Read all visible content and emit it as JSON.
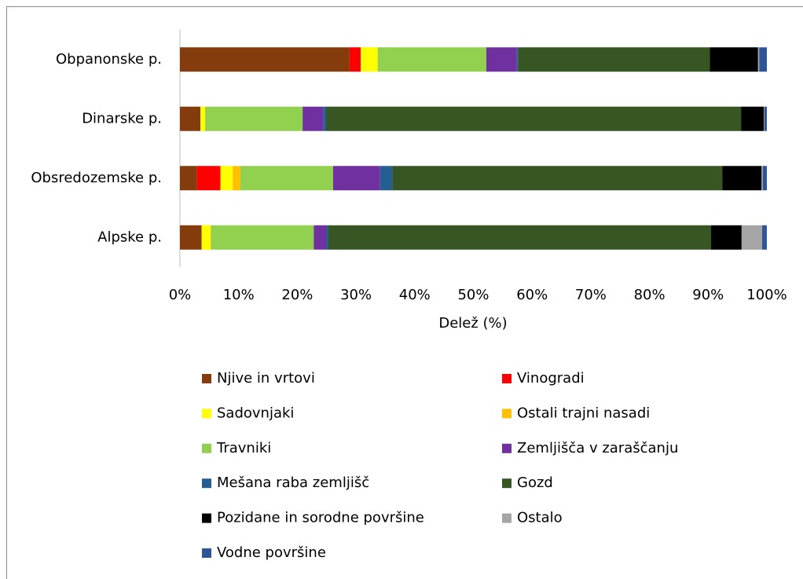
{
  "chart_data": {
    "type": "stacked_bar_horizontal",
    "categories": [
      "Obpanonske p.",
      "Dinarske p.",
      "Obsredozemske p.",
      "Alpske p."
    ],
    "series": [
      {
        "name": "Njive in vrtovi",
        "color": "#843c0c",
        "values": [
          28.9,
          3.5,
          2.9,
          3.7
        ]
      },
      {
        "name": "Vinogradi",
        "color": "#ff0000",
        "values": [
          1.9,
          0,
          4.0,
          0
        ]
      },
      {
        "name": "Sadovnjaki",
        "color": "#ffff00",
        "values": [
          2.9,
          0.8,
          2.1,
          1.5
        ]
      },
      {
        "name": "Ostali trajni nasadi",
        "color": "#ffc000",
        "values": [
          0,
          0,
          1.3,
          0.1
        ]
      },
      {
        "name": "Travniki",
        "color": "#92d050",
        "values": [
          18.5,
          16.6,
          15.8,
          17.5
        ]
      },
      {
        "name": "Zemljišča v zaraščanju",
        "color": "#7030a0",
        "values": [
          5.2,
          3.5,
          8.0,
          2.1
        ]
      },
      {
        "name": "Mešana raba zemljišč",
        "color": "#255e91",
        "values": [
          0.2,
          0.5,
          2.1,
          0.4
        ]
      },
      {
        "name": "Gozd",
        "color": "#375623",
        "values": [
          32.7,
          70.7,
          56.2,
          65.2
        ]
      },
      {
        "name": "Pozidane in sorodne površine",
        "color": "#000000",
        "values": [
          8.2,
          3.9,
          6.7,
          5.2
        ]
      },
      {
        "name": "Ostalo",
        "color": "#a5a5a5",
        "values": [
          0.2,
          0.1,
          0.2,
          3.5
        ]
      },
      {
        "name": "Vodne površine",
        "color": "#2f5597",
        "values": [
          1.3,
          0.4,
          0.7,
          0.8
        ]
      }
    ],
    "xlabel": "Delež (%)",
    "xlim": [
      0,
      100
    ],
    "xticks": [
      {
        "value": 0,
        "label": "0%"
      },
      {
        "value": 10,
        "label": "10%"
      },
      {
        "value": 20,
        "label": "20%"
      },
      {
        "value": 30,
        "label": "30%"
      },
      {
        "value": 40,
        "label": "40%"
      },
      {
        "value": 50,
        "label": "50%"
      },
      {
        "value": 60,
        "label": "60%"
      },
      {
        "value": 70,
        "label": "70%"
      },
      {
        "value": 80,
        "label": "80%"
      },
      {
        "value": 90,
        "label": "90%"
      },
      {
        "value": 100,
        "label": "100%"
      }
    ],
    "grid": false,
    "legend": "bottom"
  }
}
